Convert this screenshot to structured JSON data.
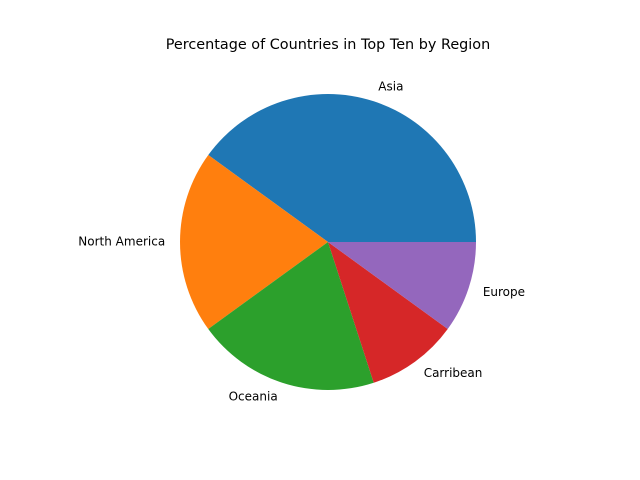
{
  "chart_data": {
    "type": "pie",
    "title": "Percentage of Countries in Top Ten by Region",
    "categories": [
      "Asia",
      "North America",
      "Oceania",
      "Carribean",
      "Europe"
    ],
    "values": [
      40,
      20,
      20,
      10,
      10
    ],
    "colors": [
      "#1f77b4",
      "#ff7f0e",
      "#2ca02c",
      "#d62728",
      "#9467bd"
    ],
    "start_angle_deg": 0,
    "direction": "counterclockwise",
    "legend": "none"
  }
}
